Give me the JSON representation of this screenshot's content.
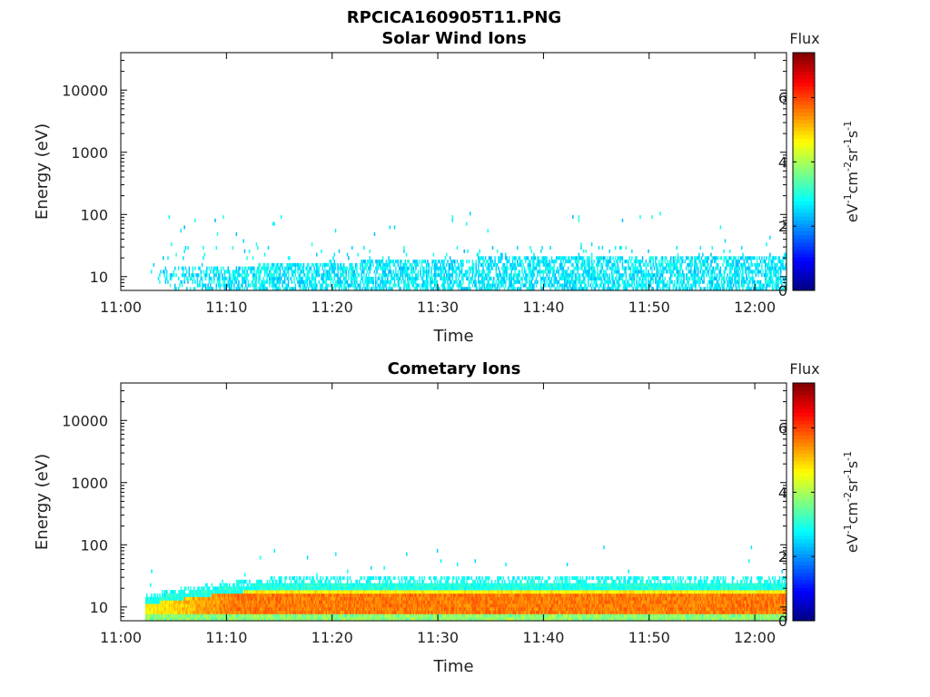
{
  "figure": {
    "title": "RPCICA160905T11.PNG"
  },
  "chart_data": [
    {
      "type": "heatmap",
      "title": "Solar Wind Ions",
      "xlabel": "Time",
      "ylabel": "Energy (eV)",
      "xticks": [
        "11:00",
        "11:10",
        "11:20",
        "11:30",
        "11:40",
        "11:50",
        "12:00"
      ],
      "xlim_minutes": [
        0,
        63
      ],
      "yscale": "log",
      "ylim": [
        6,
        40000
      ],
      "yticks": [
        "10",
        "100",
        "1000",
        "10000"
      ],
      "colorbar": {
        "title": "Flux",
        "label": "eV-1cm-2sr-1s-1",
        "range": [
          0,
          7.4
        ],
        "ticks": [
          "0",
          "2",
          "4",
          "6"
        ],
        "colormap": "jet"
      },
      "signal": {
        "description_start_minutes": 2.5,
        "core_energy_range": [
          6,
          20
        ],
        "typical_flux": 2.6,
        "sparse_upper_energy": 80
      }
    },
    {
      "type": "heatmap",
      "title": "Cometary Ions",
      "xlabel": "Time",
      "ylabel": "Energy (eV)",
      "xticks": [
        "11:00",
        "11:10",
        "11:20",
        "11:30",
        "11:40",
        "11:50",
        "12:00"
      ],
      "xlim_minutes": [
        0,
        63
      ],
      "yscale": "log",
      "ylim": [
        6,
        40000
      ],
      "yticks": [
        "10",
        "100",
        "1000",
        "10000"
      ],
      "colorbar": {
        "title": "Flux",
        "label": "eV-1cm-2sr-1s-1",
        "range": [
          0,
          7.4
        ],
        "ticks": [
          "0",
          "2",
          "4",
          "6"
        ],
        "colormap": "jet"
      },
      "signal": {
        "description_start_minutes": 2.3,
        "core_energy_range": [
          6,
          25
        ],
        "peak_flux": 5.6,
        "typical_flux": 4.8
      }
    }
  ]
}
